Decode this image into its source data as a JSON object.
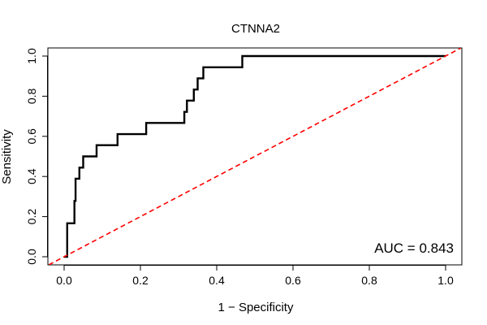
{
  "chart_data": {
    "type": "line",
    "title": "CTNNA2",
    "xlabel": "1 − Specificity",
    "ylabel": "Sensitivity",
    "xlim": [
      0,
      1
    ],
    "ylim": [
      0,
      1
    ],
    "x_ticks": [
      0.0,
      0.2,
      0.4,
      0.6,
      0.8,
      1.0
    ],
    "x_tick_labels": [
      "0.0",
      "0.2",
      "0.4",
      "0.6",
      "0.8",
      "1.0"
    ],
    "y_ticks": [
      0.0,
      0.2,
      0.4,
      0.6,
      0.8,
      1.0
    ],
    "y_tick_labels": [
      "0.0",
      "0.2",
      "0.4",
      "0.6",
      "0.8",
      "1.0"
    ],
    "grid": false,
    "annotation": "AUC = 0.843",
    "series": [
      {
        "color": "#000000",
        "style": "solid",
        "points": [
          [
            0.0,
            0.0
          ],
          [
            0.008,
            0.0
          ],
          [
            0.008,
            0.167
          ],
          [
            0.027,
            0.167
          ],
          [
            0.027,
            0.278
          ],
          [
            0.03,
            0.278
          ],
          [
            0.03,
            0.389
          ],
          [
            0.04,
            0.389
          ],
          [
            0.04,
            0.444
          ],
          [
            0.05,
            0.444
          ],
          [
            0.05,
            0.5
          ],
          [
            0.085,
            0.5
          ],
          [
            0.085,
            0.556
          ],
          [
            0.14,
            0.556
          ],
          [
            0.14,
            0.611
          ],
          [
            0.215,
            0.611
          ],
          [
            0.215,
            0.667
          ],
          [
            0.315,
            0.667
          ],
          [
            0.315,
            0.722
          ],
          [
            0.322,
            0.722
          ],
          [
            0.322,
            0.778
          ],
          [
            0.34,
            0.778
          ],
          [
            0.34,
            0.833
          ],
          [
            0.35,
            0.833
          ],
          [
            0.35,
            0.889
          ],
          [
            0.365,
            0.889
          ],
          [
            0.365,
            0.944
          ],
          [
            0.467,
            0.944
          ],
          [
            0.467,
            1.0
          ],
          [
            1.0,
            1.0
          ]
        ]
      },
      {
        "color": "#ff0000",
        "style": "dashed",
        "points": [
          [
            -0.04,
            -0.04
          ],
          [
            1.04,
            1.04
          ]
        ]
      }
    ]
  }
}
